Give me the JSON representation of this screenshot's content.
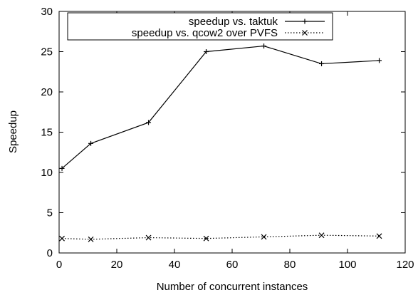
{
  "chart_data": {
    "type": "line",
    "title": "",
    "xlabel": "Number of concurrent instances",
    "ylabel": "Speedup",
    "xlim": [
      0,
      120
    ],
    "ylim": [
      0,
      30
    ],
    "xticks": [
      0,
      20,
      40,
      60,
      80,
      100,
      120
    ],
    "yticks": [
      0,
      5,
      10,
      15,
      20,
      25,
      30
    ],
    "grid": false,
    "legend_position": "top-right",
    "x": [
      1,
      11,
      31,
      51,
      71,
      91,
      111
    ],
    "series": [
      {
        "name": "speedup vs. taktuk",
        "style": "solid",
        "marker": "plus",
        "color": "#000000",
        "values": [
          10.5,
          13.6,
          16.2,
          25.0,
          25.7,
          23.5,
          23.9
        ]
      },
      {
        "name": "speedup vs. qcow2 over PVFS",
        "style": "dotted",
        "marker": "x",
        "color": "#000000",
        "values": [
          1.8,
          1.7,
          1.9,
          1.8,
          2.0,
          2.2,
          2.1
        ]
      }
    ]
  }
}
